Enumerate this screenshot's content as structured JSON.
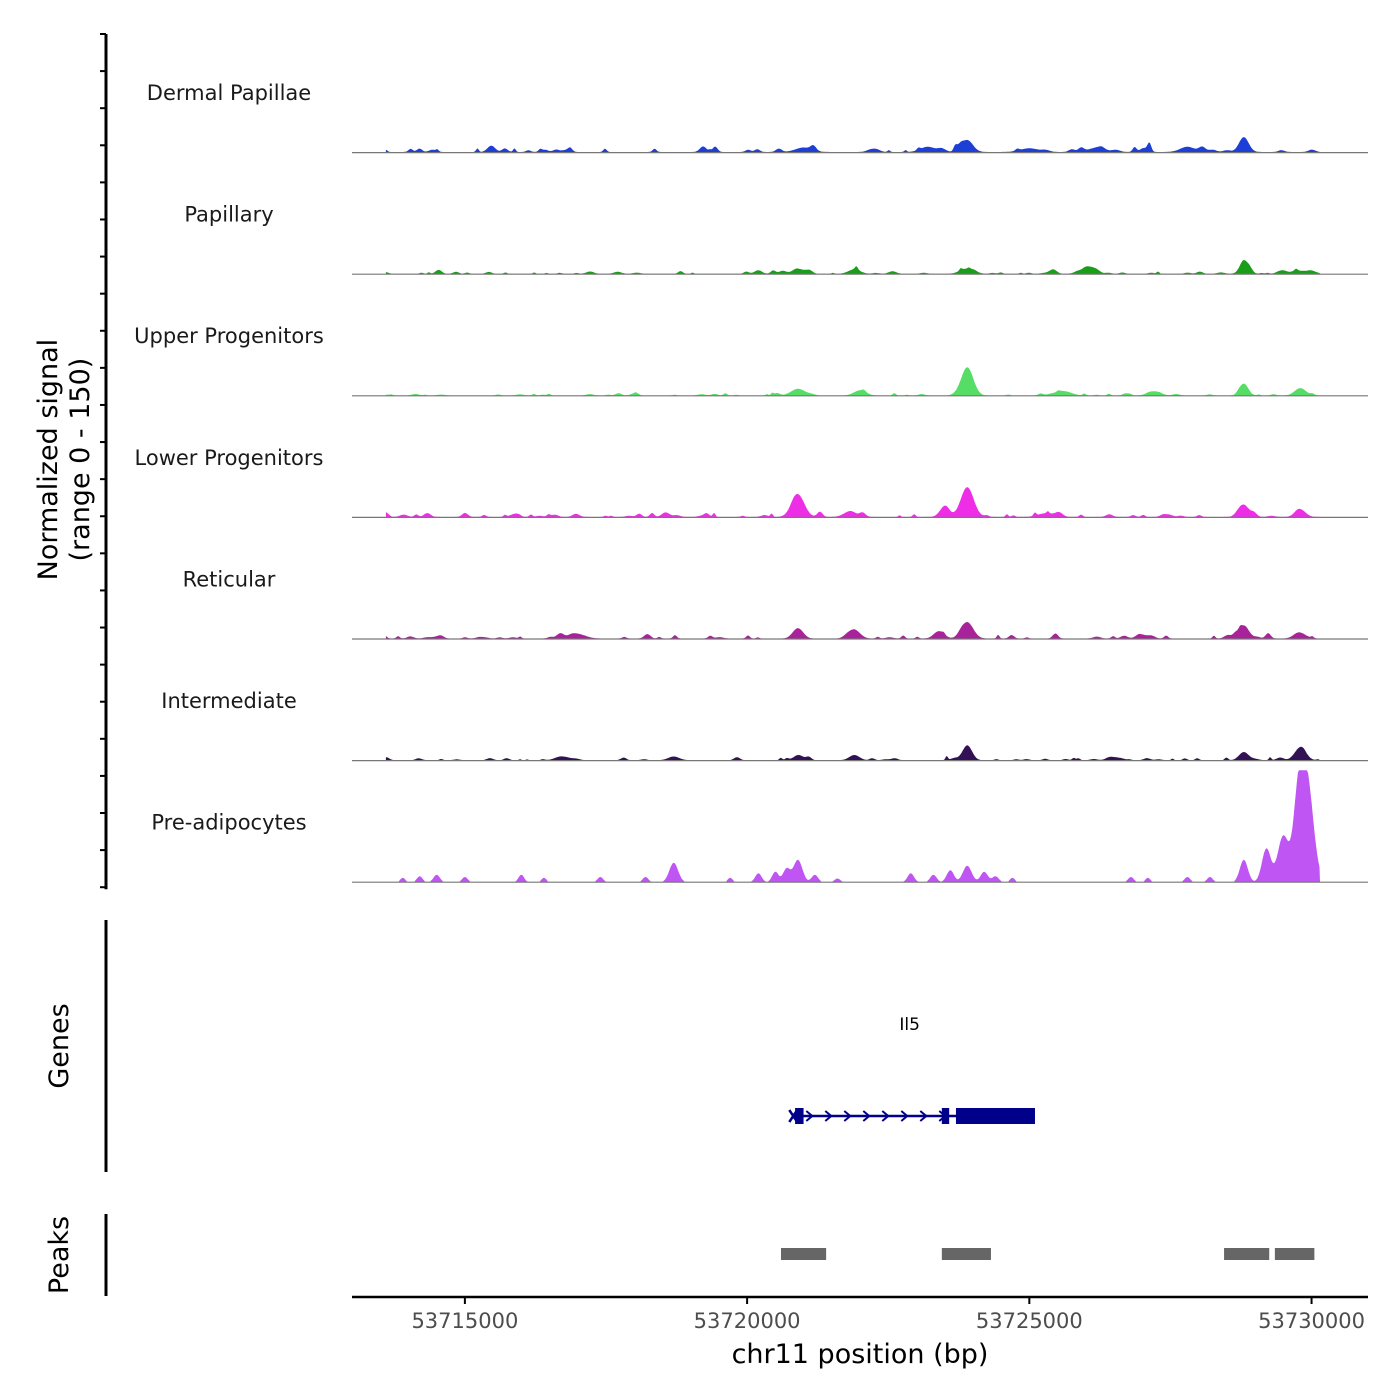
{
  "chart_data": {
    "type": "area",
    "title": "",
    "chromosome": "chr11",
    "xlabel": "chr11 position (bp)",
    "xlim": [
      53713000,
      53731000
    ],
    "x_ticks": [
      53715000,
      53720000,
      53725000,
      53730000
    ],
    "x_tick_labels": [
      "53715000",
      "53720000",
      "53725000",
      "53730000"
    ],
    "signal_axis_label": [
      "Normalized signal",
      "(range 0 - 150)"
    ],
    "signal_range": [
      0,
      150
    ],
    "series": [
      {
        "name": "Dermal Papillae",
        "color": "#1d3fd6",
        "seed": 11,
        "noise": 7,
        "peaks": [
          [
            53723900,
            16,
            140
          ],
          [
            53728800,
            20,
            120
          ],
          [
            53721000,
            6,
            200
          ],
          [
            53723200,
            7,
            180
          ],
          [
            53726200,
            6,
            200
          ],
          [
            53727800,
            7,
            180
          ],
          [
            53725000,
            5,
            220
          ]
        ]
      },
      {
        "name": "Papillary",
        "color": "#1a9e1a",
        "seed": 23,
        "noise": 4,
        "peaks": [
          [
            53728800,
            14,
            110
          ],
          [
            53723900,
            7,
            180
          ],
          [
            53720900,
            6,
            150
          ],
          [
            53721900,
            6,
            150
          ],
          [
            53729800,
            4,
            300
          ],
          [
            53726000,
            4,
            200
          ]
        ]
      },
      {
        "name": "Upper Progenitors",
        "color": "#55dd66",
        "seed": 37,
        "noise": 3,
        "peaks": [
          [
            53723900,
            38,
            150
          ],
          [
            53728800,
            16,
            110
          ],
          [
            53729800,
            10,
            140
          ],
          [
            53720900,
            9,
            170
          ],
          [
            53722000,
            7,
            150
          ],
          [
            53725600,
            6,
            200
          ],
          [
            53727200,
            5,
            160
          ]
        ]
      },
      {
        "name": "Lower Progenitors",
        "color": "#ee2ee6",
        "seed": 51,
        "noise": 5,
        "peaks": [
          [
            53720900,
            30,
            160
          ],
          [
            53723900,
            40,
            160
          ],
          [
            53723500,
            14,
            120
          ],
          [
            53728800,
            16,
            130
          ],
          [
            53729800,
            10,
            130
          ],
          [
            53721800,
            6,
            150
          ],
          [
            53725300,
            5,
            200
          ]
        ]
      },
      {
        "name": "Reticular",
        "color": "#a8229b",
        "seed": 67,
        "noise": 5,
        "peaks": [
          [
            53720900,
            14,
            130
          ],
          [
            53721900,
            12,
            140
          ],
          [
            53723900,
            22,
            150
          ],
          [
            53728800,
            16,
            130
          ],
          [
            53723400,
            10,
            130
          ],
          [
            53717000,
            6,
            200
          ],
          [
            53729800,
            7,
            150
          ],
          [
            53727000,
            5,
            140
          ]
        ]
      },
      {
        "name": "Intermediate",
        "color": "#321255",
        "seed": 83,
        "noise": 4,
        "peaks": [
          [
            53723900,
            20,
            120
          ],
          [
            53729800,
            17,
            140
          ],
          [
            53728800,
            11,
            120
          ],
          [
            53721900,
            7,
            130
          ],
          [
            53720900,
            6,
            120
          ],
          [
            53718700,
            5,
            140
          ],
          [
            53716700,
            5,
            150
          ],
          [
            53726500,
            4,
            140
          ]
        ]
      },
      {
        "name": "Pre-adipocytes",
        "color": "#bf55f2",
        "seed": 97,
        "noise": 0,
        "peaks": [
          [
            53729900,
            150,
            170
          ],
          [
            53729500,
            62,
            140
          ],
          [
            53729200,
            45,
            110
          ],
          [
            53728800,
            30,
            100
          ],
          [
            53729750,
            70,
            110
          ],
          [
            53718700,
            26,
            110
          ],
          [
            53720900,
            30,
            110
          ],
          [
            53720700,
            18,
            90
          ],
          [
            53720500,
            14,
            80
          ],
          [
            53723900,
            22,
            110
          ],
          [
            53723600,
            16,
            90
          ],
          [
            53724200,
            14,
            90
          ],
          [
            53720200,
            12,
            80
          ],
          [
            53721200,
            10,
            80
          ],
          [
            53714500,
            10,
            80
          ],
          [
            53714200,
            8,
            70
          ],
          [
            53715000,
            7,
            70
          ],
          [
            53716000,
            10,
            70
          ],
          [
            53718200,
            7,
            70
          ],
          [
            53717400,
            7,
            70
          ],
          [
            53722900,
            12,
            80
          ],
          [
            53723300,
            10,
            80
          ],
          [
            53724400,
            8,
            80
          ],
          [
            53726800,
            7,
            70
          ],
          [
            53727800,
            7,
            70
          ],
          [
            53728200,
            7,
            70
          ],
          [
            53721600,
            5,
            70
          ],
          [
            53716400,
            6,
            60
          ],
          [
            53713900,
            6,
            60
          ],
          [
            53727100,
            6,
            60
          ],
          [
            53719700,
            6,
            60
          ],
          [
            53724700,
            6,
            60
          ]
        ]
      }
    ],
    "genes": [
      {
        "name": "Il5",
        "strand": "+",
        "start": 53720800,
        "end": 53725100,
        "exons": [
          [
            53720850,
            53721000
          ],
          [
            53723450,
            53723580
          ],
          [
            53723700,
            53725100
          ]
        ]
      }
    ],
    "gene_track_label": "Genes",
    "peak_track_label": "Peaks",
    "peaks": [
      [
        53720600,
        53721400
      ],
      [
        53723450,
        53724320
      ],
      [
        53728450,
        53729250
      ],
      [
        53729350,
        53730050
      ]
    ],
    "colors": {
      "axis": "#000000",
      "baseline": "#777777",
      "gene": "#00008b",
      "peak": "#666666"
    }
  }
}
